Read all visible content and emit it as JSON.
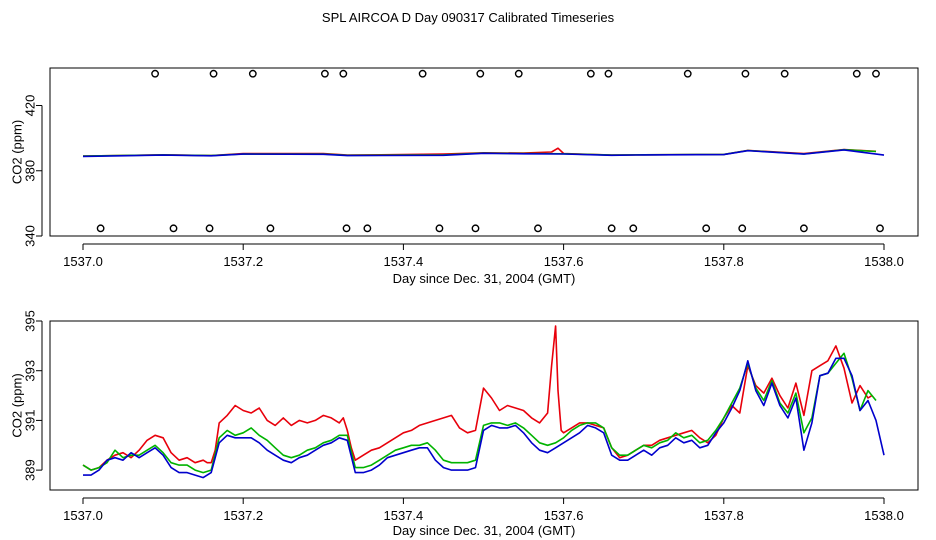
{
  "title": "SPL AIRCOA D  Day 090317  Calibrated Timeseries",
  "colors": {
    "red": "#e8000b",
    "green": "#00b300",
    "blue": "#0000cc",
    "axis": "#000000"
  },
  "chart_data": [
    {
      "type": "line",
      "panel": "top",
      "xlabel": "Day since Dec. 31, 2004 (GMT)",
      "ylabel": "CO2 (ppm)",
      "xlim": [
        1537.0,
        1538.0
      ],
      "ylim": [
        340,
        443
      ],
      "xticks": [
        1537.0,
        1537.2,
        1537.4,
        1537.6,
        1537.8,
        1538.0
      ],
      "xtick_labels": [
        "1537.0",
        "1537.2",
        "1537.4",
        "1537.6",
        "1537.8",
        "1538.0"
      ],
      "yticks": [
        340,
        380,
        420
      ],
      "ytick_labels": [
        "340",
        "380",
        "420"
      ],
      "markers_top": {
        "y": 439.5,
        "x": [
          1537.09,
          1537.163,
          1537.212,
          1537.302,
          1537.325,
          1537.424,
          1537.496,
          1537.544,
          1537.634,
          1537.656,
          1537.755,
          1537.827,
          1537.876,
          1537.966,
          1537.99
        ]
      },
      "markers_bottom": {
        "y": 344.7,
        "x": [
          1537.022,
          1537.113,
          1537.158,
          1537.234,
          1537.329,
          1537.355,
          1537.445,
          1537.49,
          1537.568,
          1537.66,
          1537.687,
          1537.778,
          1537.823,
          1537.9,
          1537.995
        ]
      },
      "series": [
        {
          "name": "red",
          "x": [
            1537.0,
            1537.1,
            1537.16,
            1537.2,
            1537.3,
            1537.33,
            1537.45,
            1537.5,
            1537.55,
            1537.585,
            1537.593,
            1537.6,
            1537.66,
            1537.7,
            1537.8,
            1537.83,
            1537.9,
            1537.95,
            1537.99
          ],
          "values": [
            389.0,
            389.8,
            389.3,
            390.5,
            390.5,
            389.6,
            390.2,
            391.0,
            390.8,
            391.5,
            393.8,
            390.6,
            389.6,
            389.8,
            390.0,
            392.5,
            390.5,
            393.0,
            391.9
          ]
        },
        {
          "name": "green",
          "x": [
            1537.0,
            1537.1,
            1537.16,
            1537.2,
            1537.3,
            1537.33,
            1537.45,
            1537.5,
            1537.55,
            1537.6,
            1537.66,
            1537.7,
            1537.8,
            1537.83,
            1537.9,
            1537.95,
            1537.99
          ],
          "values": [
            389.0,
            389.7,
            389.3,
            390.3,
            390.2,
            389.5,
            389.7,
            390.8,
            390.5,
            390.4,
            389.6,
            389.8,
            390.0,
            392.4,
            390.3,
            392.9,
            391.8
          ]
        },
        {
          "name": "blue",
          "x": [
            1537.0,
            1537.1,
            1537.16,
            1537.2,
            1537.3,
            1537.33,
            1537.45,
            1537.5,
            1537.55,
            1537.6,
            1537.66,
            1537.7,
            1537.8,
            1537.83,
            1537.9,
            1537.95,
            1538.0
          ],
          "values": [
            388.8,
            389.6,
            389.2,
            390.2,
            390.1,
            389.3,
            389.5,
            390.7,
            390.4,
            390.3,
            389.5,
            389.7,
            389.9,
            392.3,
            390.2,
            392.8,
            389.6
          ]
        }
      ]
    },
    {
      "type": "line",
      "panel": "bottom",
      "xlabel": "Day since Dec. 31, 2004 (GMT)",
      "ylabel": "CO2 (ppm)",
      "xlim": [
        1537.0,
        1538.0
      ],
      "ylim": [
        388.2,
        395.0
      ],
      "xticks": [
        1537.0,
        1537.2,
        1537.4,
        1537.6,
        1537.8,
        1538.0
      ],
      "xtick_labels": [
        "1537.0",
        "1537.2",
        "1537.4",
        "1537.6",
        "1537.8",
        "1538.0"
      ],
      "yticks": [
        389,
        391,
        393,
        395
      ],
      "ytick_labels": [
        "389",
        "391",
        "393",
        "395"
      ],
      "series": [
        {
          "name": "red",
          "x": [
            1537.0,
            1537.01,
            1537.02,
            1537.03,
            1537.04,
            1537.05,
            1537.06,
            1537.07,
            1537.08,
            1537.09,
            1537.1,
            1537.11,
            1537.12,
            1537.13,
            1537.14,
            1537.15,
            1537.155,
            1537.16,
            1537.165,
            1537.17,
            1537.18,
            1537.19,
            1537.2,
            1537.21,
            1537.22,
            1537.23,
            1537.24,
            1537.25,
            1537.26,
            1537.27,
            1537.28,
            1537.29,
            1537.3,
            1537.31,
            1537.32,
            1537.325,
            1537.33,
            1537.335,
            1537.34,
            1537.35,
            1537.36,
            1537.37,
            1537.38,
            1537.39,
            1537.4,
            1537.41,
            1537.42,
            1537.43,
            1537.44,
            1537.45,
            1537.46,
            1537.47,
            1537.48,
            1537.49,
            1537.5,
            1537.51,
            1537.52,
            1537.53,
            1537.54,
            1537.55,
            1537.56,
            1537.57,
            1537.58,
            1537.585,
            1537.59,
            1537.593,
            1537.597,
            1537.6,
            1537.61,
            1537.62,
            1537.63,
            1537.64,
            1537.65,
            1537.66,
            1537.67,
            1537.68,
            1537.69,
            1537.7,
            1537.71,
            1537.72,
            1537.73,
            1537.74,
            1537.75,
            1537.76,
            1537.77,
            1537.78,
            1537.79,
            1537.8,
            1537.81,
            1537.82,
            1537.83,
            1537.84,
            1537.85,
            1537.86,
            1537.87,
            1537.88,
            1537.89,
            1537.9,
            1537.91,
            1537.92,
            1537.93,
            1537.94,
            1537.95,
            1537.96,
            1537.97,
            1537.98,
            1537.985
          ],
          "values": [
            389.2,
            389.0,
            389.1,
            389.4,
            389.6,
            389.7,
            389.5,
            389.8,
            390.2,
            390.4,
            390.3,
            389.7,
            389.4,
            389.5,
            389.3,
            389.4,
            389.3,
            389.3,
            389.8,
            390.9,
            391.2,
            391.6,
            391.4,
            391.3,
            391.5,
            391.0,
            390.8,
            391.1,
            390.8,
            391.0,
            390.9,
            391.0,
            391.2,
            391.1,
            390.9,
            391.1,
            390.6,
            389.9,
            389.4,
            389.6,
            389.8,
            389.9,
            390.1,
            390.3,
            390.5,
            390.6,
            390.8,
            390.9,
            391.0,
            391.1,
            391.2,
            390.7,
            390.5,
            390.6,
            392.3,
            391.9,
            391.4,
            391.6,
            391.5,
            391.4,
            391.1,
            390.9,
            391.3,
            393.2,
            394.8,
            392.2,
            390.6,
            390.5,
            390.7,
            390.9,
            390.9,
            390.8,
            390.7,
            389.9,
            389.5,
            389.6,
            389.8,
            390.0,
            390.0,
            390.2,
            390.3,
            390.4,
            390.5,
            390.6,
            390.3,
            390.1,
            390.4,
            391.1,
            391.6,
            391.3,
            393.2,
            392.4,
            392.1,
            392.7,
            392.0,
            391.5,
            392.5,
            391.2,
            393.0,
            393.2,
            393.4,
            394.0,
            393.1,
            391.7,
            392.4,
            391.9,
            392.0
          ]
        },
        {
          "name": "green",
          "x": [
            1537.0,
            1537.01,
            1537.02,
            1537.03,
            1537.04,
            1537.05,
            1537.06,
            1537.07,
            1537.08,
            1537.09,
            1537.1,
            1537.11,
            1537.12,
            1537.13,
            1537.14,
            1537.15,
            1537.16,
            1537.17,
            1537.18,
            1537.19,
            1537.2,
            1537.21,
            1537.22,
            1537.23,
            1537.24,
            1537.25,
            1537.26,
            1537.27,
            1537.28,
            1537.29,
            1537.3,
            1537.31,
            1537.32,
            1537.33,
            1537.34,
            1537.35,
            1537.36,
            1537.37,
            1537.38,
            1537.39,
            1537.4,
            1537.41,
            1537.42,
            1537.43,
            1537.44,
            1537.45,
            1537.46,
            1537.47,
            1537.48,
            1537.49,
            1537.5,
            1537.51,
            1537.52,
            1537.53,
            1537.54,
            1537.55,
            1537.56,
            1537.57,
            1537.58,
            1537.59,
            1537.6,
            1537.61,
            1537.62,
            1537.63,
            1537.64,
            1537.65,
            1537.66,
            1537.67,
            1537.68,
            1537.69,
            1537.7,
            1537.71,
            1537.72,
            1537.73,
            1537.74,
            1537.75,
            1537.76,
            1537.77,
            1537.78,
            1537.79,
            1537.8,
            1537.81,
            1537.82,
            1537.83,
            1537.84,
            1537.85,
            1537.86,
            1537.87,
            1537.88,
            1537.89,
            1537.9,
            1537.91,
            1537.92,
            1537.93,
            1537.94,
            1537.95,
            1537.96,
            1537.97,
            1537.98,
            1537.99
          ],
          "values": [
            389.2,
            389.0,
            389.1,
            389.3,
            389.8,
            389.5,
            389.6,
            389.6,
            389.8,
            390.0,
            389.7,
            389.3,
            389.2,
            389.2,
            389.0,
            388.9,
            389.0,
            390.3,
            390.6,
            390.4,
            390.5,
            390.7,
            390.4,
            390.2,
            389.9,
            389.6,
            389.5,
            389.6,
            389.8,
            389.9,
            390.1,
            390.2,
            390.4,
            390.4,
            389.1,
            389.1,
            389.2,
            389.4,
            389.6,
            389.8,
            389.9,
            390.0,
            390.0,
            390.1,
            389.8,
            389.4,
            389.3,
            389.3,
            389.3,
            389.4,
            390.8,
            390.9,
            390.9,
            390.8,
            390.9,
            390.7,
            390.4,
            390.1,
            390.0,
            390.1,
            390.3,
            390.6,
            390.8,
            390.9,
            390.9,
            390.7,
            389.9,
            389.6,
            389.6,
            389.8,
            390.0,
            389.9,
            390.1,
            390.2,
            390.5,
            390.3,
            390.4,
            390.1,
            390.2,
            390.6,
            391.1,
            391.7,
            392.3,
            393.3,
            392.3,
            391.8,
            392.6,
            391.7,
            391.3,
            392.1,
            390.5,
            391.1,
            392.8,
            392.9,
            393.3,
            393.7,
            392.7,
            391.4,
            392.2,
            391.8
          ]
        },
        {
          "name": "blue",
          "x": [
            1537.0,
            1537.01,
            1537.02,
            1537.03,
            1537.04,
            1537.05,
            1537.06,
            1537.07,
            1537.08,
            1537.09,
            1537.1,
            1537.11,
            1537.12,
            1537.13,
            1537.14,
            1537.15,
            1537.16,
            1537.17,
            1537.18,
            1537.19,
            1537.2,
            1537.21,
            1537.22,
            1537.23,
            1537.24,
            1537.25,
            1537.26,
            1537.27,
            1537.28,
            1537.29,
            1537.3,
            1537.31,
            1537.32,
            1537.33,
            1537.34,
            1537.35,
            1537.36,
            1537.37,
            1537.38,
            1537.39,
            1537.4,
            1537.41,
            1537.42,
            1537.43,
            1537.44,
            1537.45,
            1537.46,
            1537.47,
            1537.48,
            1537.49,
            1537.5,
            1537.51,
            1537.52,
            1537.53,
            1537.54,
            1537.55,
            1537.56,
            1537.57,
            1537.58,
            1537.59,
            1537.6,
            1537.61,
            1537.62,
            1537.63,
            1537.64,
            1537.65,
            1537.66,
            1537.67,
            1537.68,
            1537.69,
            1537.7,
            1537.71,
            1537.72,
            1537.73,
            1537.74,
            1537.75,
            1537.76,
            1537.77,
            1537.78,
            1537.79,
            1537.8,
            1537.81,
            1537.82,
            1537.83,
            1537.84,
            1537.85,
            1537.86,
            1537.87,
            1537.88,
            1537.89,
            1537.9,
            1537.91,
            1537.92,
            1537.93,
            1537.94,
            1537.95,
            1537.96,
            1537.97,
            1537.98,
            1537.99,
            1538.0
          ],
          "values": [
            388.8,
            388.8,
            389.0,
            389.4,
            389.5,
            389.4,
            389.7,
            389.5,
            389.7,
            389.9,
            389.6,
            389.1,
            388.9,
            388.9,
            388.8,
            388.7,
            388.9,
            390.1,
            390.4,
            390.3,
            390.3,
            390.3,
            390.1,
            389.8,
            389.6,
            389.4,
            389.3,
            389.5,
            389.6,
            389.8,
            390.0,
            390.1,
            390.3,
            390.2,
            388.9,
            388.9,
            389.0,
            389.2,
            389.5,
            389.6,
            389.7,
            389.8,
            389.9,
            389.9,
            389.4,
            389.1,
            389.0,
            389.0,
            389.0,
            389.1,
            390.6,
            390.8,
            390.7,
            390.7,
            390.8,
            390.5,
            390.1,
            389.8,
            389.7,
            389.9,
            390.1,
            390.3,
            390.5,
            390.8,
            390.7,
            390.5,
            389.6,
            389.4,
            389.4,
            389.6,
            389.8,
            389.6,
            389.9,
            390.0,
            390.3,
            390.1,
            390.2,
            389.9,
            390.0,
            390.5,
            390.9,
            391.5,
            392.2,
            393.4,
            392.2,
            391.6,
            392.5,
            391.6,
            391.1,
            391.9,
            389.8,
            390.9,
            392.8,
            392.9,
            393.5,
            393.5,
            392.8,
            391.4,
            391.8,
            391.0,
            389.6
          ]
        }
      ]
    }
  ]
}
